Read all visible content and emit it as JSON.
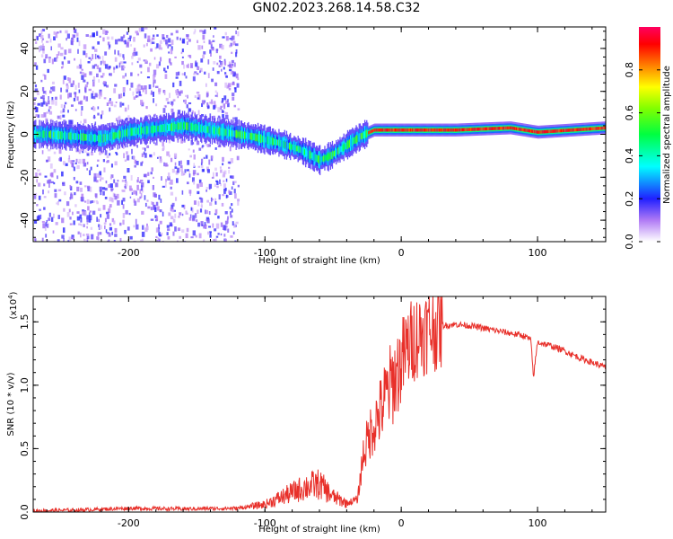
{
  "title": "GN02.2023.268.14.58.C32",
  "chart_data": [
    {
      "type": "heatmap",
      "name": "spectrogram",
      "xlabel": "Height of straight line (km)",
      "ylabel": "Frequency (Hz)",
      "xlim": [
        -270,
        150
      ],
      "ylim": [
        -50,
        50
      ],
      "xticks": [
        -200,
        -100,
        0,
        100
      ],
      "yticks": [
        -40,
        -20,
        0,
        20,
        40
      ],
      "colorbar": {
        "label": "Normalized spectral amplitude",
        "range": [
          0.0,
          1.0
        ],
        "ticks": [
          0.0,
          0.2,
          0.4,
          0.6,
          0.8
        ]
      },
      "ridge": {
        "x": [
          -260,
          -220,
          -200,
          -160,
          -130,
          -110,
          -90,
          -75,
          -60,
          -52,
          -40,
          -30,
          -20,
          0,
          40,
          80,
          100,
          150
        ],
        "y": [
          0,
          -2,
          1,
          4,
          1,
          -1,
          -4,
          -7,
          -12,
          -10,
          -5,
          -1,
          2,
          2,
          2,
          3,
          1,
          3
        ]
      },
      "noise_region_x": [
        -270,
        -120
      ]
    },
    {
      "type": "line",
      "name": "snr",
      "xlabel": "Height of straight line (km)",
      "ylabel": "SNR (10 * v/v)",
      "scale_label": "(x10",
      "scale_exp": "4",
      "color": "#e8302a",
      "xlim": [
        -270,
        150
      ],
      "ylim": [
        0.0,
        1.7
      ],
      "xticks": [
        -200,
        -100,
        0,
        100
      ],
      "yticks": [
        0.0,
        0.5,
        1.0,
        1.5
      ],
      "series": [
        {
          "name": "SNR",
          "x": [
            -270,
            -240,
            -200,
            -160,
            -120,
            -100,
            -85,
            -70,
            -60,
            -50,
            -40,
            -32,
            -28,
            -22,
            -15,
            -10,
            -5,
            0,
            5,
            10,
            20,
            30,
            40,
            50,
            60,
            70,
            80,
            90,
            95,
            97,
            100,
            110,
            120,
            130,
            140,
            150
          ],
          "y": [
            0.01,
            0.015,
            0.03,
            0.025,
            0.03,
            0.06,
            0.13,
            0.2,
            0.22,
            0.12,
            0.07,
            0.1,
            0.45,
            0.65,
            0.8,
            0.95,
            1.05,
            1.18,
            1.3,
            1.38,
            1.44,
            1.47,
            1.48,
            1.47,
            1.45,
            1.43,
            1.41,
            1.39,
            1.36,
            1.06,
            1.34,
            1.31,
            1.27,
            1.22,
            1.18,
            1.14
          ]
        }
      ]
    }
  ]
}
